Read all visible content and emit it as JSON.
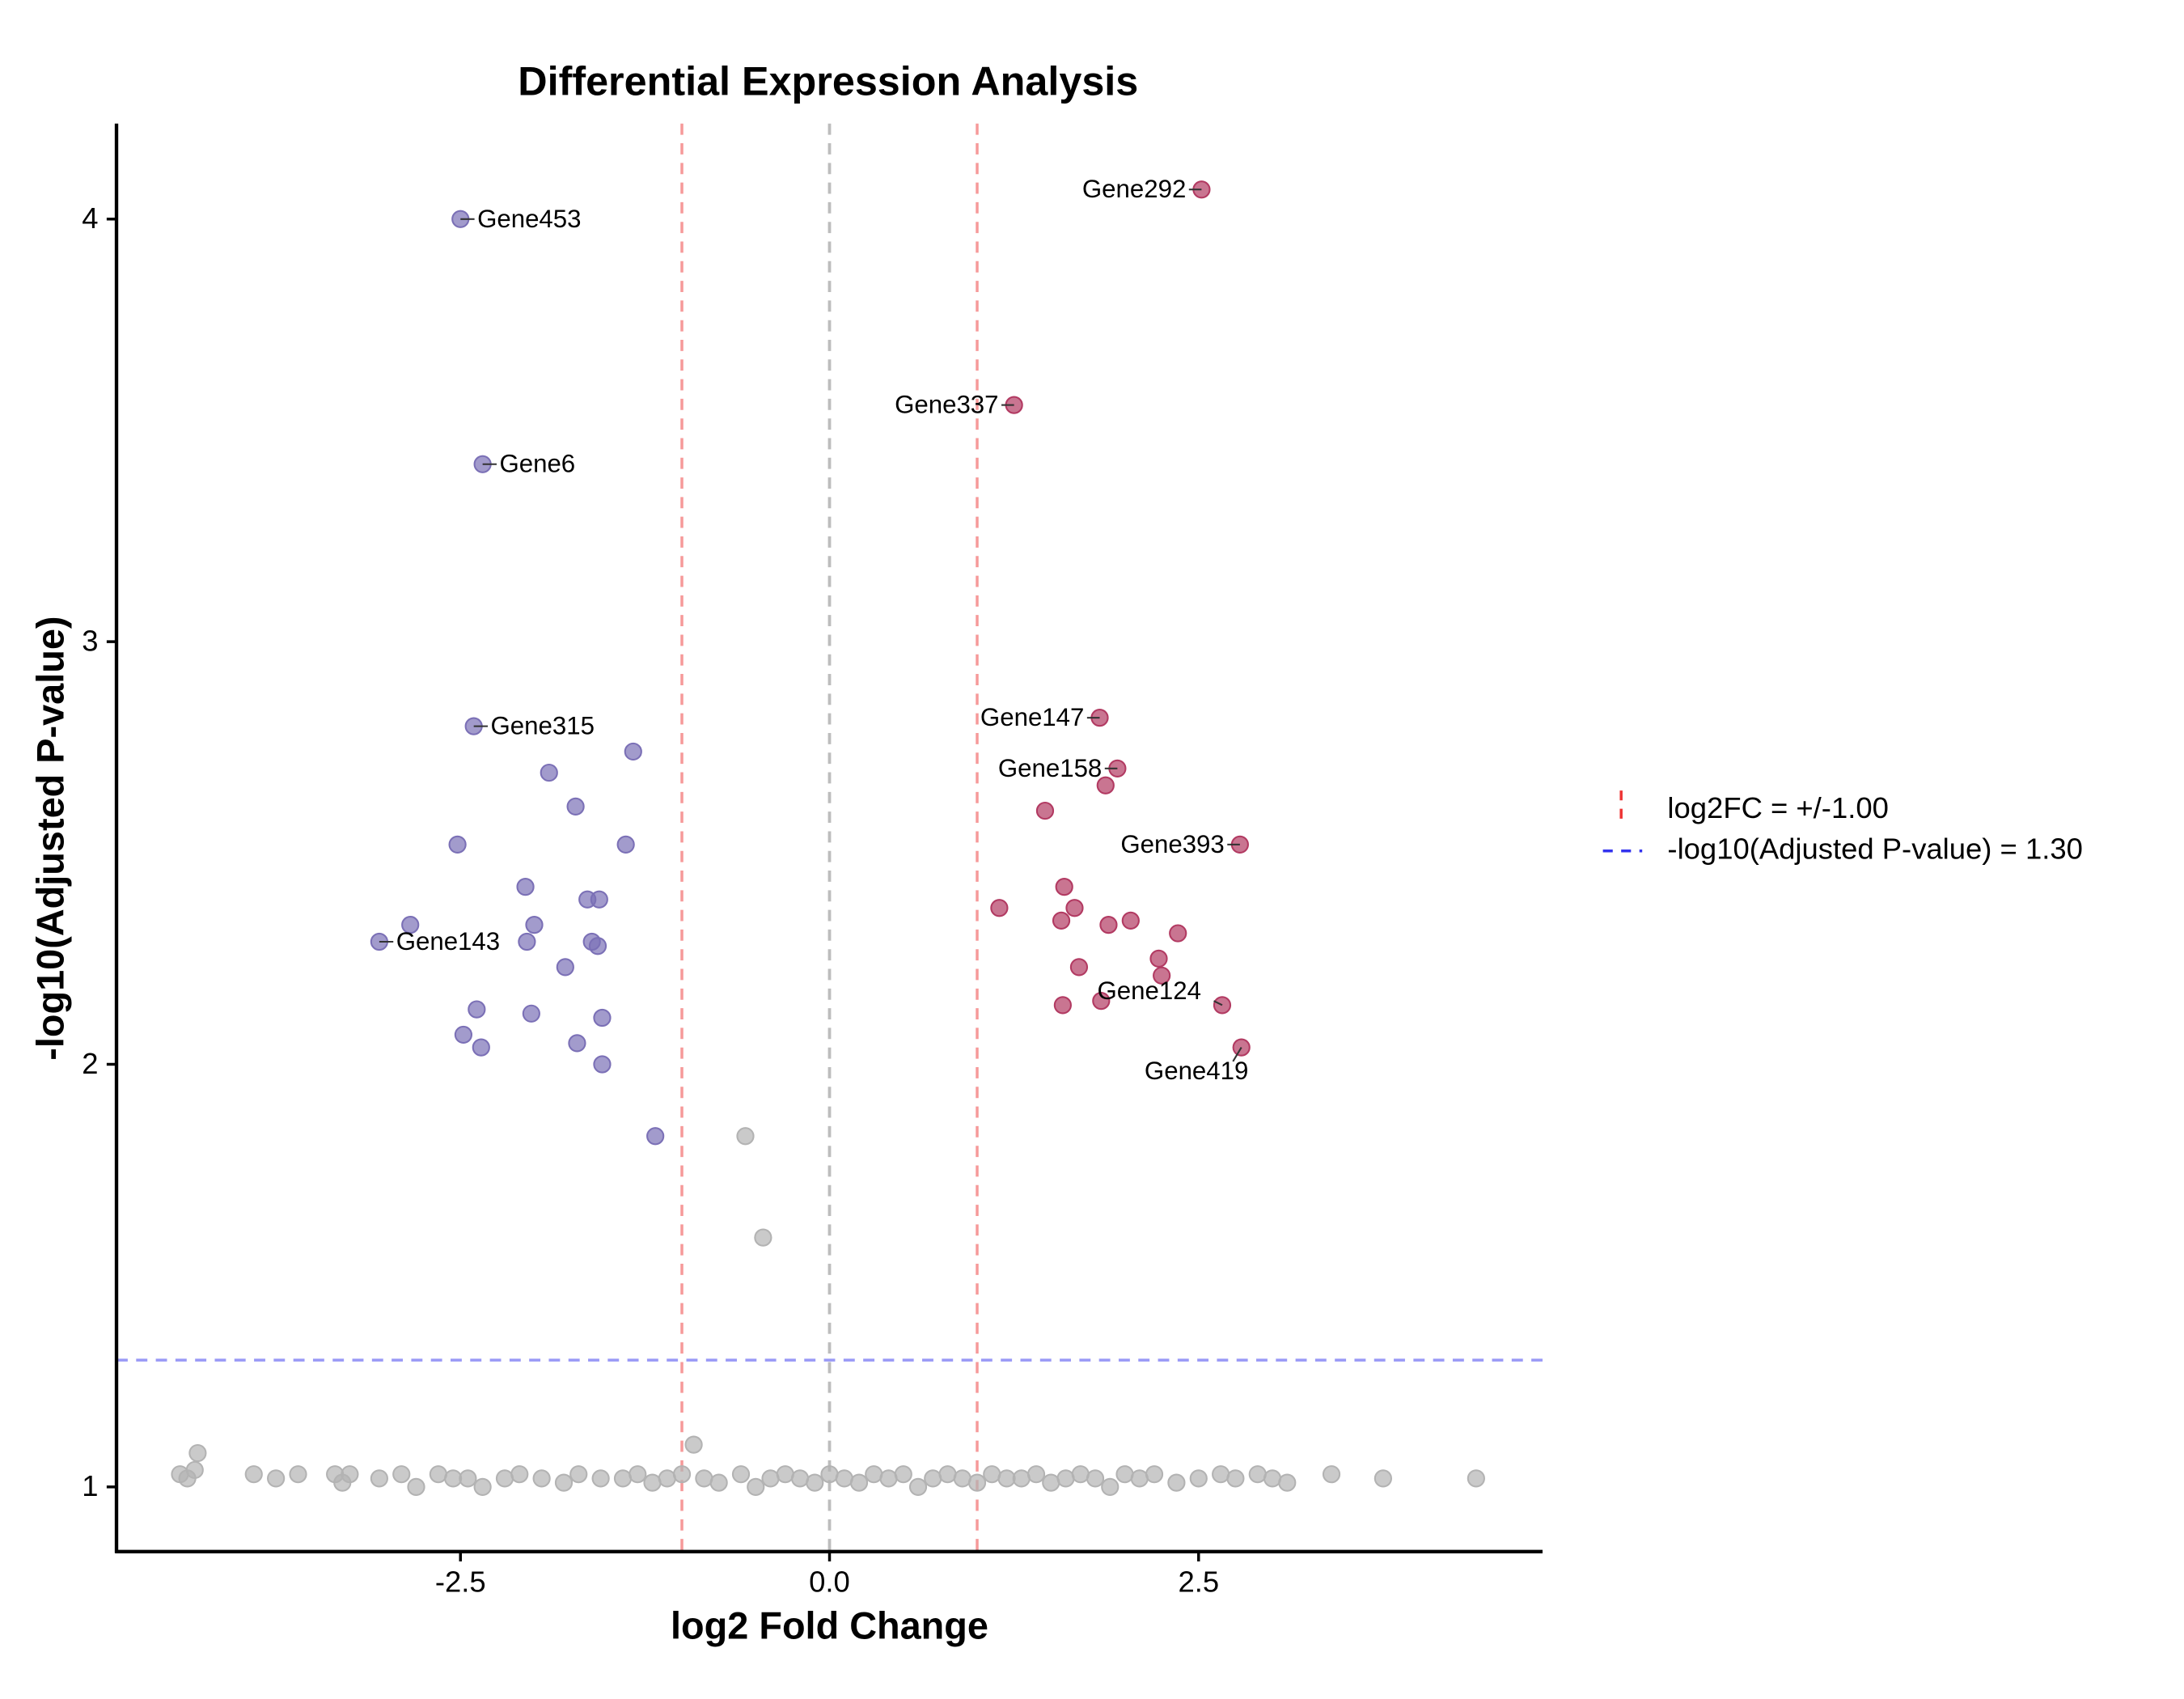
{
  "chart_data": {
    "type": "scatter",
    "title": "Differential Expression Analysis",
    "x_label": "log2 Fold Change",
    "y_label": "-log10(Adjusted P-value)",
    "xlim": [
      -4.83,
      4.83
    ],
    "ylim": [
      0.847,
      4.226
    ],
    "xticks": [
      -2.5,
      {
        "value": 0,
        "label": "0.0"
      },
      2.5
    ],
    "yticks": [
      1,
      2,
      3,
      4
    ],
    "grid": false,
    "series": [
      {
        "color": "#7b70b6",
        "x": [
          -2.5,
          -2.35,
          -2.41,
          -1.33,
          -1.9,
          -1.72,
          -2.52,
          -1.38,
          -2.06,
          -1.56,
          -1.64,
          -2.0,
          -2.84,
          -3.05,
          -2.05,
          -1.61,
          -1.57,
          -1.79,
          -2.39,
          -2.02,
          -1.54,
          -2.48,
          -2.36,
          -1.71,
          -1.54,
          -1.18
        ],
        "values": [
          4.0,
          3.42,
          2.8,
          2.74,
          2.69,
          2.61,
          2.52,
          2.52,
          2.42,
          2.39,
          2.39,
          2.33,
          2.33,
          2.29,
          2.29,
          2.29,
          2.28,
          2.23,
          2.13,
          2.12,
          2.11,
          2.07,
          2.04,
          2.05,
          2.0,
          1.83
        ],
        "labels": [
          "Gene453",
          "Gene6",
          "Gene315",
          null,
          null,
          null,
          null,
          null,
          null,
          null,
          null,
          null,
          null,
          "Gene143",
          null,
          null,
          null,
          null,
          null,
          null,
          null,
          null,
          null,
          null,
          null,
          null
        ]
      },
      {
        "color": "#b23a62",
        "x": [
          2.52,
          1.25,
          1.83,
          1.95,
          1.87,
          1.46,
          2.78,
          1.59,
          1.15,
          1.66,
          1.57,
          1.89,
          2.04,
          2.36,
          2.23,
          1.69,
          2.25,
          1.84,
          2.66,
          1.58,
          2.79
        ],
        "values": [
          4.07,
          3.56,
          2.82,
          2.7,
          2.66,
          2.6,
          2.52,
          2.42,
          2.37,
          2.37,
          2.34,
          2.33,
          2.34,
          2.31,
          2.25,
          2.23,
          2.21,
          2.15,
          2.14,
          2.14,
          2.04
        ],
        "labels": [
          "Gene292",
          "Gene337",
          "Gene147",
          "Gene158",
          null,
          null,
          "Gene393",
          null,
          null,
          null,
          null,
          null,
          null,
          null,
          null,
          null,
          null,
          null,
          "Gene124",
          null,
          "Gene419"
        ]
      },
      {
        "color": "#b3b3b3",
        "x": [
          -0.57,
          -0.45,
          -0.92,
          -4.28,
          -4.3,
          -4.4,
          -4.35,
          -3.9,
          -3.75,
          -3.6,
          -3.35,
          -3.3,
          -3.25,
          -3.05,
          -2.9,
          -2.8,
          -2.65,
          -2.55,
          -2.45,
          -2.35,
          -2.2,
          -2.1,
          -1.95,
          -1.8,
          -1.7,
          -1.55,
          -1.4,
          -1.3,
          -1.2,
          -1.1,
          -1.0,
          -0.85,
          -0.75,
          -0.6,
          -0.5,
          -0.4,
          -0.3,
          -0.2,
          -0.1,
          0.0,
          0.1,
          0.2,
          0.3,
          0.4,
          0.5,
          0.6,
          0.7,
          0.8,
          0.9,
          1.0,
          1.1,
          1.2,
          1.3,
          1.4,
          1.5,
          1.6,
          1.7,
          1.8,
          1.9,
          2.0,
          2.1,
          2.2,
          2.35,
          2.5,
          2.65,
          2.75,
          2.9,
          3.0,
          3.1,
          3.4,
          3.75,
          4.38
        ],
        "values": [
          1.83,
          1.59,
          1.1,
          1.08,
          1.04,
          1.03,
          1.02,
          1.03,
          1.02,
          1.03,
          1.03,
          1.01,
          1.03,
          1.02,
          1.03,
          1.0,
          1.03,
          1.02,
          1.02,
          1.0,
          1.02,
          1.03,
          1.02,
          1.01,
          1.03,
          1.02,
          1.02,
          1.03,
          1.01,
          1.02,
          1.03,
          1.02,
          1.01,
          1.03,
          1.0,
          1.02,
          1.03,
          1.02,
          1.01,
          1.03,
          1.02,
          1.01,
          1.03,
          1.02,
          1.03,
          1.0,
          1.02,
          1.03,
          1.02,
          1.01,
          1.03,
          1.02,
          1.02,
          1.03,
          1.01,
          1.02,
          1.03,
          1.02,
          1.0,
          1.03,
          1.02,
          1.03,
          1.01,
          1.02,
          1.03,
          1.02,
          1.03,
          1.02,
          1.01,
          1.03,
          1.02,
          1.02
        ]
      }
    ],
    "zero_line": {
      "value": 0,
      "color": "#bdbdbd"
    },
    "reference_lines": [
      {
        "label": "log2FC = +/-1.00",
        "axis": "x",
        "values": [
          -1,
          1
        ],
        "color": "#ee3333"
      },
      {
        "label": "-log10(Adjusted P-value) = 1.30",
        "axis": "y",
        "values": [
          1.3
        ],
        "color": "#3333ee"
      }
    ]
  }
}
